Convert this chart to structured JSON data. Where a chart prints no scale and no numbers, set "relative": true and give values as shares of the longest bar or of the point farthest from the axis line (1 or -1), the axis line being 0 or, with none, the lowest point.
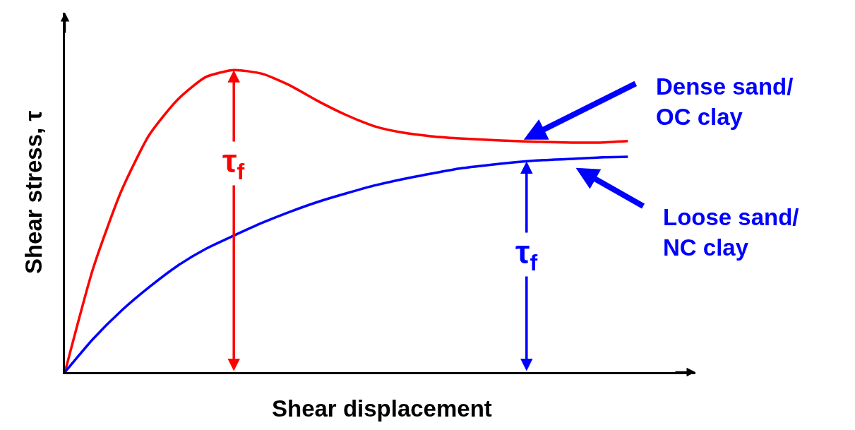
{
  "chart_data": {
    "type": "line",
    "relative": true,
    "tick_labels": false,
    "xlabel": "Shear displacement",
    "ylabel": "Shear stress, τ",
    "categories": [
      null,
      null,
      null,
      null,
      null,
      null,
      null,
      null,
      null,
      null,
      null,
      null,
      null,
      null,
      null,
      null,
      null,
      null,
      null,
      null,
      null
    ],
    "series": [
      {
        "name": "Dense sand/\nOC clay",
        "color": "#ff0000",
        "values": [
          0,
          0.343,
          0.599,
          0.786,
          0.902,
          0.977,
          1,
          0.988,
          0.949,
          0.897,
          0.851,
          0.814,
          0.793,
          0.781,
          0.774,
          0.769,
          0.765,
          0.762,
          0.76,
          0.76,
          0.765
        ]
      },
      {
        "name": "Loose sand/\nNC clay",
        "color": "#0000ff",
        "values": [
          0,
          0.11,
          0.203,
          0.282,
          0.352,
          0.408,
          0.452,
          0.494,
          0.531,
          0.564,
          0.592,
          0.618,
          0.639,
          0.657,
          0.674,
          0.685,
          0.695,
          0.702,
          0.706,
          0.711,
          0.713
        ]
      }
    ],
    "annotations": [
      "τ$_{f}$",
      "τ$_{f}$"
    ]
  }
}
